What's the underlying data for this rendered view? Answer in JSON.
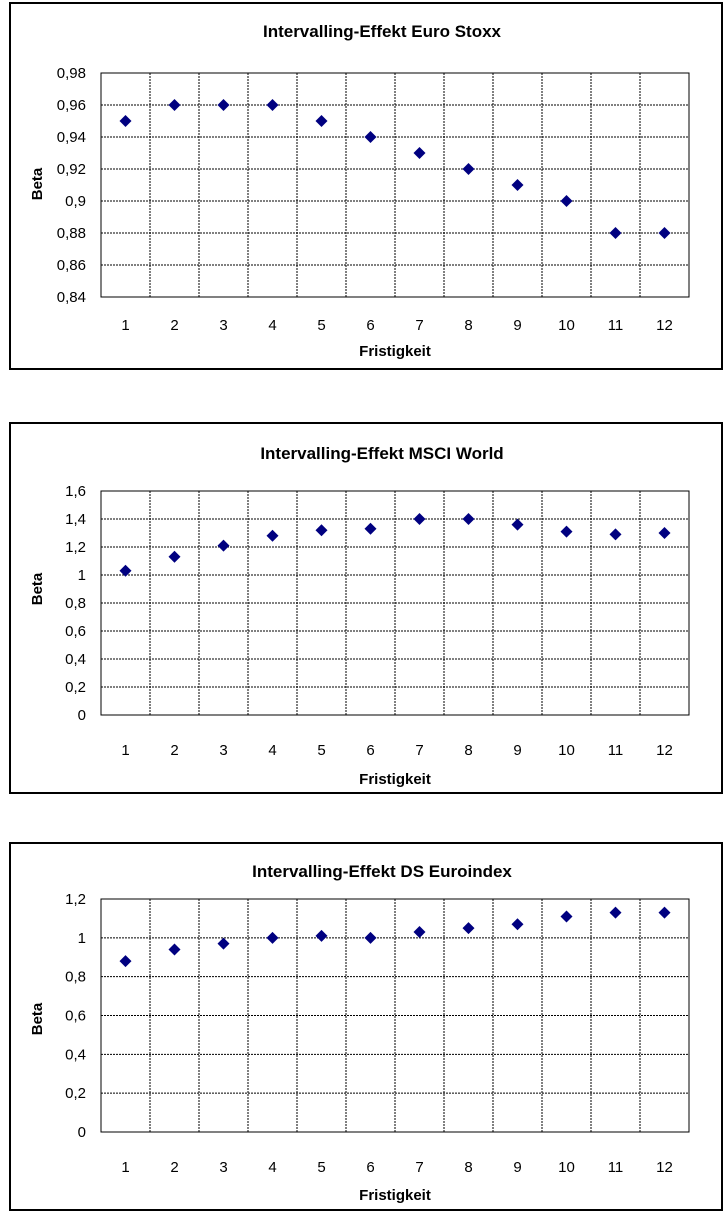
{
  "chart_data": [
    {
      "type": "scatter",
      "title": "Intervalling-Effekt Euro Stoxx",
      "xlabel": "Fristigkeit",
      "ylabel": "Beta",
      "categories": [
        "1",
        "2",
        "3",
        "4",
        "5",
        "6",
        "7",
        "8",
        "9",
        "10",
        "11",
        "12"
      ],
      "y_tick_labels": [
        "0,84",
        "0,86",
        "0,88",
        "0,9",
        "0,92",
        "0,94",
        "0,96",
        "0,98"
      ],
      "ylim": [
        0.84,
        0.98
      ],
      "grid": true,
      "marker_color": "#000080",
      "series": [
        {
          "values": [
            0.95,
            0.96,
            0.96,
            0.96,
            0.95,
            0.94,
            0.93,
            0.92,
            0.91,
            0.9,
            0.88,
            0.88
          ]
        }
      ]
    },
    {
      "type": "scatter",
      "title": "Intervalling-Effekt MSCI World",
      "xlabel": "Fristigkeit",
      "ylabel": "Beta",
      "categories": [
        "1",
        "2",
        "3",
        "4",
        "5",
        "6",
        "7",
        "8",
        "9",
        "10",
        "11",
        "12"
      ],
      "y_tick_labels": [
        "0",
        "0,2",
        "0,4",
        "0,6",
        "0,8",
        "1",
        "1,2",
        "1,4",
        "1,6"
      ],
      "ylim": [
        0,
        1.6
      ],
      "grid": true,
      "marker_color": "#000080",
      "series": [
        {
          "values": [
            1.03,
            1.13,
            1.21,
            1.28,
            1.32,
            1.33,
            1.4,
            1.4,
            1.36,
            1.31,
            1.29,
            1.3
          ]
        }
      ]
    },
    {
      "type": "scatter",
      "title": "Intervalling-Effekt DS Euroindex",
      "xlabel": "Fristigkeit",
      "ylabel": "Beta",
      "categories": [
        "1",
        "2",
        "3",
        "4",
        "5",
        "6",
        "7",
        "8",
        "9",
        "10",
        "11",
        "12"
      ],
      "y_tick_labels": [
        "0",
        "0,2",
        "0,4",
        "0,6",
        "0,8",
        "1",
        "1,2"
      ],
      "ylim": [
        0,
        1.2
      ],
      "grid": true,
      "marker_color": "#000080",
      "series": [
        {
          "values": [
            0.88,
            0.94,
            0.97,
            1.0,
            1.01,
            1.0,
            1.03,
            1.05,
            1.07,
            1.11,
            1.13,
            1.13
          ]
        }
      ]
    }
  ]
}
